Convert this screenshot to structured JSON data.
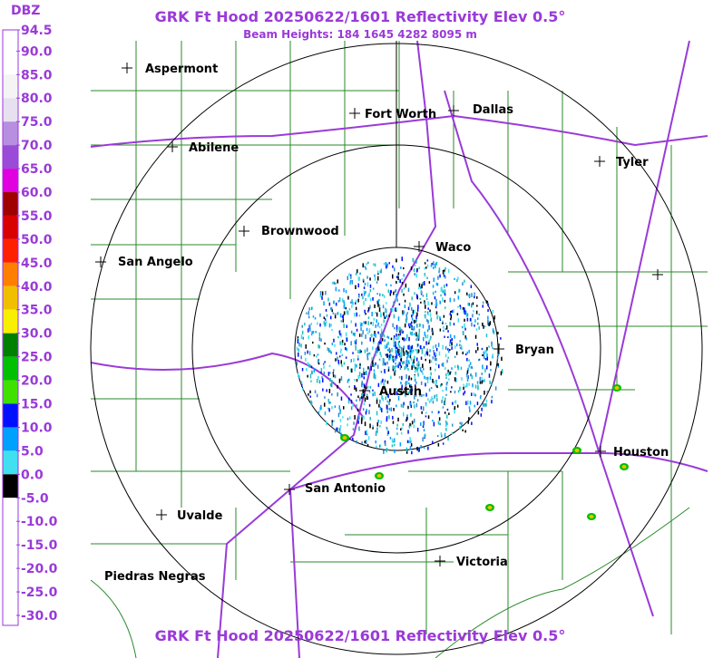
{
  "header": {
    "title": "GRK Ft Hood 20250622/1601 Reflectivity Elev 0.5°",
    "subtitle": "Beam Heights: 184 1645 4282 8095 m"
  },
  "footer": {
    "title": "GRK Ft Hood 20250622/1601 Reflectivity Elev 0.5°"
  },
  "legend": {
    "title": "DBZ",
    "ticks": [
      94.5,
      {
        "value": 90,
        "label": "90.0"
      },
      {
        "value": 85,
        "label": "85.0"
      },
      {
        "value": 80,
        "label": "80.0"
      },
      {
        "value": 75,
        "label": "75.0"
      },
      {
        "value": 70,
        "label": "70.0"
      },
      {
        "value": 65,
        "label": "65.0"
      },
      {
        "value": 60,
        "label": "60.0"
      },
      {
        "value": 55,
        "label": "55.0"
      },
      {
        "value": 50,
        "label": "50.0"
      },
      {
        "value": 45,
        "label": "45.0"
      },
      {
        "value": 40,
        "label": "40.0"
      },
      {
        "value": 35,
        "label": "35.0"
      },
      {
        "value": 30,
        "label": "30.0"
      },
      {
        "value": 25,
        "label": "25.0"
      },
      {
        "value": 20,
        "label": "20.0"
      },
      {
        "value": 15,
        "label": "15.0"
      },
      {
        "value": 10,
        "label": "10.0"
      },
      {
        "value": 5,
        "label": "5.0"
      },
      {
        "value": 0,
        "label": "0.0"
      },
      {
        "value": -5,
        "label": "-5.0"
      },
      {
        "value": -10,
        "label": "-10.0"
      },
      {
        "value": -15,
        "label": "-15.0"
      },
      {
        "value": -20,
        "label": "-20.0"
      },
      {
        "value": -25,
        "label": "-25.0"
      },
      {
        "value": -30,
        "label": "-30.0"
      }
    ],
    "colors": [
      "#ffffff",
      "#ffffff",
      "#f4f4f4",
      "#e6e0f0",
      "#b88ee0",
      "#9a4cd8",
      "#e000e0",
      "#a00000",
      "#d80000",
      "#ff2000",
      "#ff8000",
      "#f0c000",
      "#f8f000",
      "#008000",
      "#00c000",
      "#40e000",
      "#0010ff",
      "#00a0ff",
      "#40e0f0",
      "#000000",
      "#ffffff",
      "#ffffff",
      "#ffffff",
      "#ffffff",
      "#ffffff"
    ]
  },
  "cities": [
    "Aspermont",
    "Abilene",
    "Fort Worth",
    "Dallas",
    "Tyler",
    "Brownwood",
    "Waco",
    "San Angelo",
    "Bryan",
    "Austin",
    "San Antonio",
    "Uvalde",
    "Houston",
    "Victoria",
    "Piedras Negras"
  ]
}
